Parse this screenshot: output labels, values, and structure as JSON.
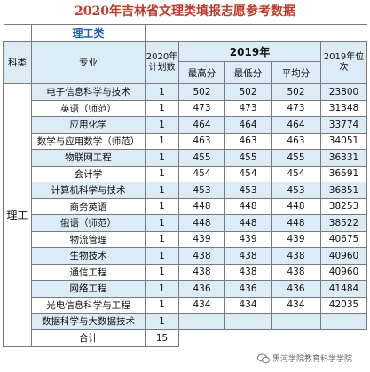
{
  "title": "2020年吉林省文理类填报志愿参考数据",
  "category_title": "理工类",
  "headers": {
    "subject": "科类",
    "major": "专业",
    "plan_2020": "2020年计划数",
    "year_2019": "2019年",
    "max": "最高分",
    "min": "最低分",
    "avg": "平均分",
    "rank_2019": "2019年位次"
  },
  "subject_value": "理工",
  "rows": [
    {
      "major": "电子信息科学与技术",
      "plan": "1",
      "max": "502",
      "min": "502",
      "avg": "502",
      "rank": "23800"
    },
    {
      "major": "英语（师范）",
      "plan": "1",
      "max": "473",
      "min": "473",
      "avg": "473",
      "rank": "31348"
    },
    {
      "major": "应用化学",
      "plan": "1",
      "max": "464",
      "min": "464",
      "avg": "464",
      "rank": "33774"
    },
    {
      "major": "数学与应用数学（师范）",
      "plan": "1",
      "max": "463",
      "min": "463",
      "avg": "463",
      "rank": "34051"
    },
    {
      "major": "物联网工程",
      "plan": "1",
      "max": "455",
      "min": "455",
      "avg": "455",
      "rank": "36331"
    },
    {
      "major": "会计学",
      "plan": "1",
      "max": "454",
      "min": "454",
      "avg": "454",
      "rank": "36591"
    },
    {
      "major": "计算机科学与技术",
      "plan": "1",
      "max": "453",
      "min": "453",
      "avg": "453",
      "rank": "36851"
    },
    {
      "major": "商务英语",
      "plan": "1",
      "max": "448",
      "min": "448",
      "avg": "448",
      "rank": "38253"
    },
    {
      "major": "俄语（师范）",
      "plan": "1",
      "max": "448",
      "min": "448",
      "avg": "448",
      "rank": "38522"
    },
    {
      "major": "物流管理",
      "plan": "1",
      "max": "439",
      "min": "439",
      "avg": "439",
      "rank": "40675"
    },
    {
      "major": "生物技术",
      "plan": "1",
      "max": "438",
      "min": "438",
      "avg": "438",
      "rank": "40960"
    },
    {
      "major": "通信工程",
      "plan": "1",
      "max": "438",
      "min": "438",
      "avg": "438",
      "rank": "40960"
    },
    {
      "major": "网络工程",
      "plan": "1",
      "max": "436",
      "min": "436",
      "avg": "436",
      "rank": "41484"
    },
    {
      "major": "光电信息科学与工程",
      "plan": "1",
      "max": "434",
      "min": "434",
      "avg": "434",
      "rank": "42035"
    },
    {
      "major": "数据科学与大数据技术",
      "plan": "1",
      "max": "",
      "min": "",
      "avg": "",
      "rank": ""
    }
  ],
  "total_label": "合计",
  "total_value": "15",
  "watermark": "黑河学院教育科学学院"
}
